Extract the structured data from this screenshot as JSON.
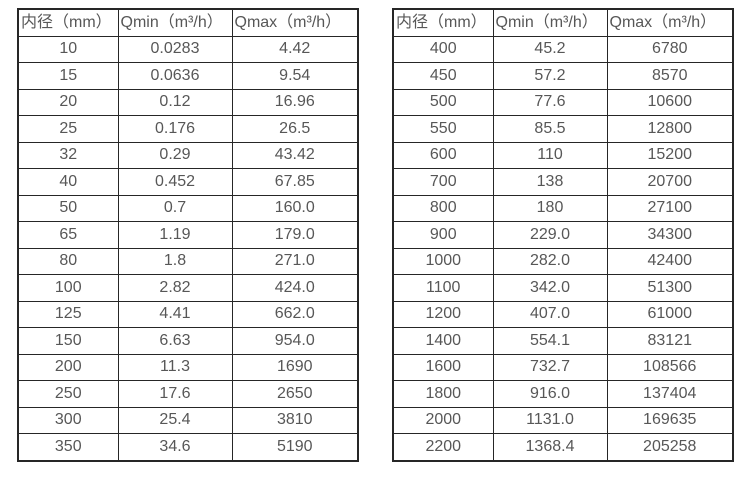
{
  "page": {
    "background_color": "#ffffff",
    "border_color": "#262626",
    "text_color": "#575757"
  },
  "tables": [
    {
      "name": "flow-rate-table-small-diameters",
      "headers": [
        "内径（mm）",
        "Qmin（m³/h）",
        "Qmax（m³/h）"
      ],
      "rows": [
        [
          "10",
          "0.0283",
          "4.42"
        ],
        [
          "15",
          "0.0636",
          "9.54"
        ],
        [
          "20",
          "0.12",
          "16.96"
        ],
        [
          "25",
          "0.176",
          "26.5"
        ],
        [
          "32",
          "0.29",
          "43.42"
        ],
        [
          "40",
          "0.452",
          "67.85"
        ],
        [
          "50",
          "0.7",
          "160.0"
        ],
        [
          "65",
          "1.19",
          "179.0"
        ],
        [
          "80",
          "1.8",
          "271.0"
        ],
        [
          "100",
          "2.82",
          "424.0"
        ],
        [
          "125",
          "4.41",
          "662.0"
        ],
        [
          "150",
          "6.63",
          "954.0"
        ],
        [
          "200",
          "11.3",
          "1690"
        ],
        [
          "250",
          "17.6",
          "2650"
        ],
        [
          "300",
          "25.4",
          "3810"
        ],
        [
          "350",
          "34.6",
          "5190"
        ]
      ]
    },
    {
      "name": "flow-rate-table-large-diameters",
      "headers": [
        "内径（mm）",
        "Qmin（m³/h）",
        "Qmax（m³/h）"
      ],
      "rows": [
        [
          "400",
          "45.2",
          "6780"
        ],
        [
          "450",
          "57.2",
          "8570"
        ],
        [
          "500",
          "77.6",
          "10600"
        ],
        [
          "550",
          "85.5",
          "12800"
        ],
        [
          "600",
          "110",
          "15200"
        ],
        [
          "700",
          "138",
          "20700"
        ],
        [
          "800",
          "180",
          "27100"
        ],
        [
          "900",
          "229.0",
          "34300"
        ],
        [
          "1000",
          "282.0",
          "42400"
        ],
        [
          "1100",
          "342.0",
          "51300"
        ],
        [
          "1200",
          "407.0",
          "61000"
        ],
        [
          "1400",
          "554.1",
          "83121"
        ],
        [
          "1600",
          "732.7",
          "108566"
        ],
        [
          "1800",
          "916.0",
          "137404"
        ],
        [
          "2000",
          "1131.0",
          "169635"
        ],
        [
          "2200",
          "1368.4",
          "205258"
        ]
      ]
    }
  ]
}
